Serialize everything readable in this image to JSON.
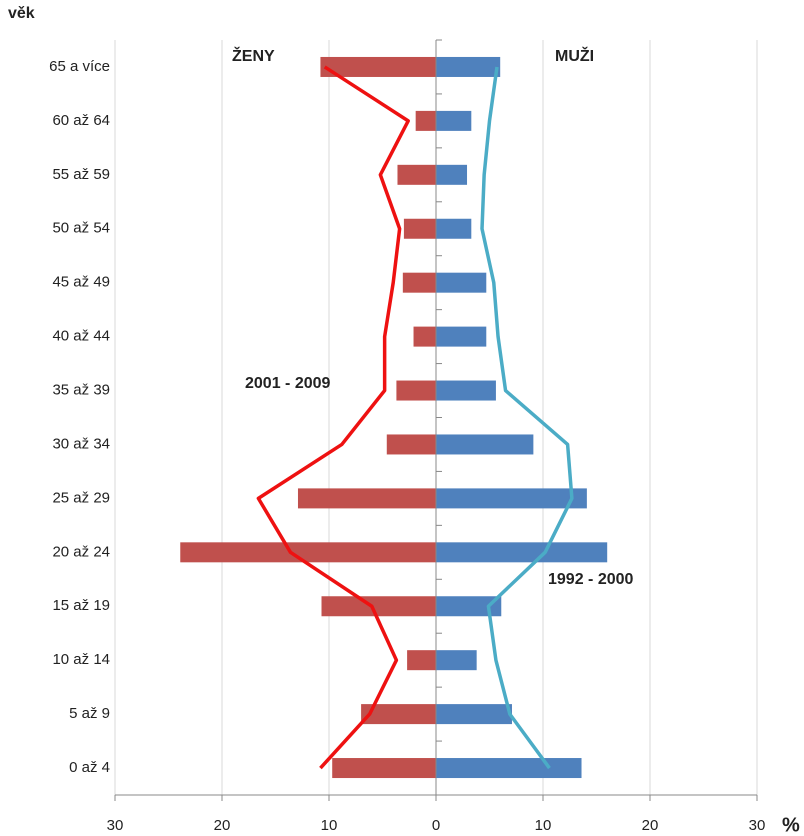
{
  "chart_data": {
    "type": "population-pyramid",
    "y_label": "věk",
    "x_unit": "%",
    "categories": [
      "65 a více",
      "60 až 64",
      "55 až 59",
      "50 až 54",
      "45 až 49",
      "40 až 44",
      "35 až 39",
      "30 až 34",
      "25 až 29",
      "20 až 24",
      "15 až 19",
      "10 až 14",
      "5 až 9",
      "0 až 4"
    ],
    "series": [
      {
        "name": "ŽENY",
        "kind": "bar",
        "color": "#c0504d",
        "values": [
          -10.8,
          -1.9,
          -3.6,
          -3.0,
          -3.1,
          -2.1,
          -3.7,
          -4.6,
          -12.9,
          -23.9,
          -10.7,
          -2.7,
          -7.0,
          -9.7
        ]
      },
      {
        "name": "MUŽI",
        "kind": "bar",
        "color": "#4f81bd",
        "values": [
          6.0,
          3.3,
          2.9,
          3.3,
          4.7,
          4.7,
          5.6,
          9.1,
          14.1,
          16.0,
          6.1,
          3.8,
          7.1,
          13.6
        ]
      },
      {
        "name": "2001 - 2009",
        "kind": "line",
        "color": "#ee1111",
        "values": [
          -10.4,
          -2.6,
          -5.2,
          -3.4,
          -4.0,
          -4.8,
          -4.8,
          -8.8,
          -16.6,
          -13.6,
          -6.0,
          -3.7,
          -6.2,
          -10.8
        ]
      },
      {
        "name": "1992 - 2000",
        "kind": "line",
        "color": "#4bacc6",
        "values": [
          5.7,
          5.0,
          4.5,
          4.3,
          5.4,
          5.8,
          6.5,
          12.3,
          12.7,
          10.2,
          4.9,
          5.6,
          6.9,
          10.6
        ]
      }
    ],
    "xlim": [
      -30,
      30
    ],
    "xticks": [
      {
        "value": -30,
        "label": "30"
      },
      {
        "value": -20,
        "label": "20"
      },
      {
        "value": -10,
        "label": "10"
      },
      0,
      10,
      20,
      {
        "value": 30,
        "label": "30"
      }
    ],
    "grid": true
  }
}
